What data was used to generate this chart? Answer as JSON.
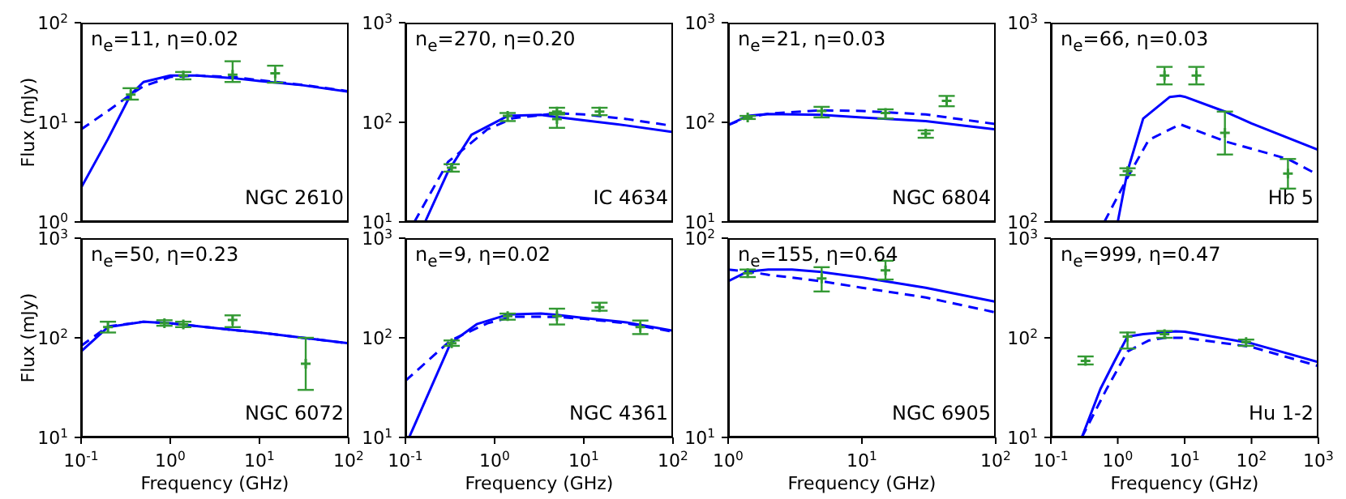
{
  "chart_data": [
    {
      "type": "line",
      "ylabel": "Flux (mJy)",
      "log": "xy",
      "grid": false,
      "tick_labels": "y",
      "marker": "none",
      "annotations": [
        "n$_{e}$=11, η=0.02",
        "NGC 2610"
      ],
      "xlim": [
        0.1,
        100
      ],
      "ylim": [
        1,
        100
      ],
      "xticks": [
        {
          "value": 0.1,
          "label": null
        },
        {
          "value": 1,
          "label": null
        },
        {
          "value": 10,
          "label": null
        },
        {
          "value": 100,
          "label": null
        }
      ],
      "yticks": [
        {
          "value": 1,
          "label": "10$^{0}$"
        },
        {
          "value": 10,
          "label": "10$^{1}$"
        },
        {
          "value": 100,
          "label": "10$^{2}$"
        }
      ],
      "series": [
        {
          "type": "line",
          "line_style": "solid",
          "color": "#0000ff",
          "x": [
            0.1,
            0.2,
            0.36,
            0.5,
            1,
            2,
            5,
            10,
            30,
            100
          ],
          "values": [
            2.2,
            6.8,
            19,
            25.4,
            29.5,
            29.5,
            27.8,
            26,
            23.6,
            20.3
          ]
        },
        {
          "type": "line",
          "line_style": "dashed",
          "color": "#0000ff",
          "x": [
            0.1,
            0.2,
            0.36,
            0.5,
            1,
            2,
            5,
            10,
            30,
            100
          ],
          "values": [
            8.5,
            13,
            19,
            23,
            28.5,
            29.5,
            28.5,
            26.5,
            23.8,
            20.5
          ]
        },
        {
          "type": "scatter",
          "marker": "cross",
          "color": "#339933",
          "x": [
            0.36,
            1.4,
            5,
            15
          ],
          "values": [
            19,
            29.5,
            30,
            31
          ],
          "errors": [
            [
              16.9,
              22
            ],
            [
              27,
              32
            ],
            [
              25.4,
              41
            ],
            [
              25,
              37
            ]
          ]
        }
      ]
    },
    {
      "type": "line",
      "log": "xy",
      "grid": false,
      "tick_labels": "y",
      "marker": "none",
      "annotations": [
        "n$_{e}$=270, η=0.20",
        "IC 4634"
      ],
      "xlim": [
        0.1,
        100
      ],
      "ylim": [
        10,
        1000
      ],
      "xticks": [
        {
          "value": 0.1,
          "label": null
        },
        {
          "value": 1,
          "label": null
        },
        {
          "value": 10,
          "label": null
        },
        {
          "value": 100,
          "label": null
        }
      ],
      "yticks": [
        {
          "value": 10,
          "label": "10$^{1}$"
        },
        {
          "value": 100,
          "label": "10$^{2}$"
        },
        {
          "value": 1000,
          "label": "10$^{3}$"
        }
      ],
      "series": [
        {
          "type": "line",
          "line_style": "solid",
          "color": "#0000ff",
          "x": [
            0.166,
            0.3,
            0.55,
            1.4,
            3.3,
            5,
            10,
            30,
            100
          ],
          "values": [
            10,
            32,
            75,
            116,
            119,
            113,
            105,
            93,
            80
          ]
        },
        {
          "type": "line",
          "line_style": "dashed",
          "color": "#0000ff",
          "x": [
            0.126,
            0.3,
            0.83,
            1.6,
            5,
            10,
            30,
            100
          ],
          "values": [
            10,
            40,
            85,
            110,
            123,
            120,
            108,
            92
          ]
        },
        {
          "type": "scatter",
          "marker": "cross",
          "color": "#339933",
          "x": [
            0.33,
            1.4,
            5,
            5,
            15
          ],
          "values": [
            35,
            116,
            128,
            108,
            128
          ],
          "errors": [
            [
              32,
              38
            ],
            [
              103,
              124
            ],
            [
              120,
              140
            ],
            [
              88,
              125
            ],
            [
              118,
              140
            ]
          ]
        }
      ]
    },
    {
      "type": "line",
      "log": "xy",
      "grid": false,
      "tick_labels": "y",
      "marker": "none",
      "annotations": [
        "n$_{e}$=21, η=0.03",
        "NGC 6804"
      ],
      "xlim": [
        1,
        100
      ],
      "ylim": [
        10,
        1000
      ],
      "xticks": [
        {
          "value": 1,
          "label": null
        },
        {
          "value": 10,
          "label": null
        },
        {
          "value": 100,
          "label": null
        }
      ],
      "yticks": [
        {
          "value": 10,
          "label": "10$^{1}$"
        },
        {
          "value": 100,
          "label": "10$^{2}$"
        },
        {
          "value": 1000,
          "label": "10$^{3}$"
        }
      ],
      "series": [
        {
          "type": "line",
          "line_style": "solid",
          "color": "#0000ff",
          "x": [
            1,
            1.4,
            2,
            5,
            10,
            30,
            100
          ],
          "values": [
            94,
            116,
            121,
            119,
            112,
            103,
            85
          ]
        },
        {
          "type": "line",
          "line_style": "dashed",
          "color": "#0000ff",
          "x": [
            1,
            1.4,
            2,
            5,
            10,
            30,
            100
          ],
          "values": [
            94,
            112,
            122,
            132,
            130,
            120,
            96
          ]
        },
        {
          "type": "scatter",
          "marker": "cross",
          "color": "#339933",
          "x": [
            1.4,
            5,
            15,
            30,
            43
          ],
          "values": [
            112,
            130,
            124,
            77,
            164
          ],
          "errors": [
            [
              108,
              116
            ],
            [
              112,
              143
            ],
            [
              109,
              135
            ],
            [
              70,
              83
            ],
            [
              145,
              184
            ]
          ]
        }
      ]
    },
    {
      "type": "line",
      "log": "xy",
      "grid": false,
      "tick_labels": "y",
      "marker": "none",
      "annotations": [
        "n$_{e}$=66, η=0.03",
        "Hb 5"
      ],
      "xlim": [
        0.1,
        1000
      ],
      "ylim": [
        100,
        1000
      ],
      "xticks": [
        {
          "value": 0.1,
          "label": null
        },
        {
          "value": 1,
          "label": null
        },
        {
          "value": 10,
          "label": null
        },
        {
          "value": 100,
          "label": null
        },
        {
          "value": 1000,
          "label": null
        }
      ],
      "yticks": [
        {
          "value": 100,
          "label": "10$^{2}$"
        },
        {
          "value": 1000,
          "label": "10$^{3}$"
        }
      ],
      "series": [
        {
          "type": "line",
          "line_style": "solid",
          "color": "#0000ff",
          "x": [
            1,
            1.4,
            2.4,
            6,
            8.5,
            10,
            40,
            100,
            1000
          ],
          "values": [
            100,
            180,
            330,
            424,
            430,
            425,
            358,
            312,
            230
          ]
        },
        {
          "type": "line",
          "line_style": "dashed",
          "color": "#0000ff",
          "x": [
            0.63,
            1.4,
            2.9,
            8.6,
            40,
            350,
            1000
          ],
          "values": [
            100,
            167,
            258,
            309,
            254,
            207,
            172
          ]
        },
        {
          "type": "scatter",
          "marker": "cross",
          "color": "#339933",
          "x": [
            1.4,
            5,
            15,
            40,
            350
          ],
          "values": [
            180,
            543,
            543,
            280,
            175
          ],
          "errors": [
            [
              172,
              186
            ],
            [
              490,
              600
            ],
            [
              490,
              600
            ],
            [
              218,
              358
            ],
            [
              147,
              207
            ]
          ]
        }
      ]
    },
    {
      "type": "line",
      "xlabel": "Frequency (GHz)",
      "ylabel": "Flux (mJy)",
      "log": "xy",
      "grid": false,
      "marker": "none",
      "annotations": [
        "n$_{e}$=50, η=0.23",
        "NGC 6072"
      ],
      "xlim": [
        0.1,
        100
      ],
      "ylim": [
        10,
        1000
      ],
      "xticks": [
        {
          "value": 0.1,
          "label": "10$^{-1}$"
        },
        {
          "value": 1,
          "label": "10$^{0}$"
        },
        {
          "value": 10,
          "label": "10$^{1}$"
        },
        {
          "value": 100,
          "label": "10$^{2}$"
        }
      ],
      "yticks": [
        {
          "value": 10,
          "label": "10$^{1}$"
        },
        {
          "value": 100,
          "label": "10$^{2}$"
        },
        {
          "value": 1000,
          "label": "10$^{3}$"
        }
      ],
      "series": [
        {
          "type": "line",
          "line_style": "solid",
          "color": "#0000ff",
          "x": [
            0.1,
            0.2,
            0.5,
            1,
            5,
            10,
            100
          ],
          "values": [
            73,
            128,
            145,
            140,
            120,
            113,
            88
          ]
        },
        {
          "type": "line",
          "line_style": "dashed",
          "color": "#0000ff",
          "x": [
            0.1,
            0.2,
            0.5,
            1,
            5,
            10,
            100
          ],
          "values": [
            83,
            130,
            145,
            140,
            120,
            113,
            88
          ]
        },
        {
          "type": "scatter",
          "marker": "cross",
          "color": "#339933",
          "x": [
            0.2,
            0.86,
            1.4,
            5,
            33
          ],
          "values": [
            128,
            140,
            136,
            151,
            55
          ],
          "errors": [
            [
              113,
              145
            ],
            [
              132,
              150
            ],
            [
              128,
              145
            ],
            [
              128,
              168
            ],
            [
              30,
              100
            ]
          ]
        }
      ]
    },
    {
      "type": "line",
      "xlabel": "Frequency (GHz)",
      "log": "xy",
      "grid": false,
      "marker": "none",
      "annotations": [
        "n$_{e}$=9, η=0.02",
        "NGC 4361"
      ],
      "xlim": [
        0.1,
        100
      ],
      "ylim": [
        10,
        1000
      ],
      "xticks": [
        {
          "value": 0.1,
          "label": "10$^{-1}$"
        },
        {
          "value": 1,
          "label": "10$^{0}$"
        },
        {
          "value": 10,
          "label": "10$^{1}$"
        },
        {
          "value": 100,
          "label": "10$^{2}$"
        }
      ],
      "yticks": [
        {
          "value": 10,
          "label": "10$^{1}$"
        },
        {
          "value": 100,
          "label": "10$^{2}$"
        },
        {
          "value": 1000,
          "label": "10$^{3}$"
        }
      ],
      "series": [
        {
          "type": "line",
          "line_style": "solid",
          "color": "#0000ff",
          "x": [
            0.11,
            0.32,
            0.63,
            1.4,
            3.3,
            5,
            10,
            30,
            100
          ],
          "values": [
            10,
            88,
            137,
            171,
            175,
            170,
            158,
            143,
            118
          ]
        },
        {
          "type": "line",
          "line_style": "dashed",
          "color": "#0000ff",
          "x": [
            0.1,
            0.32,
            0.83,
            1.6,
            5,
            10,
            30,
            100
          ],
          "values": [
            37,
            94,
            140,
            163,
            162,
            155,
            140,
            115
          ]
        },
        {
          "type": "scatter",
          "marker": "cross",
          "color": "#339933",
          "x": [
            0.33,
            1.4,
            5,
            15,
            43
          ],
          "values": [
            88,
            165,
            165,
            203,
            128
          ],
          "errors": [
            [
              83,
              94
            ],
            [
              152,
              175
            ],
            [
              136,
              196
            ],
            [
              187,
              225
            ],
            [
              109,
              149
            ]
          ]
        }
      ]
    },
    {
      "type": "line",
      "xlabel": "Frequency (GHz)",
      "log": "xy",
      "grid": false,
      "marker": "none",
      "annotations": [
        "n$_{e}$=155, η=0.64",
        "NGC 6905"
      ],
      "xlim": [
        1,
        100
      ],
      "ylim": [
        10,
        100
      ],
      "xticks": [
        {
          "value": 1,
          "label": "10$^{0}$"
        },
        {
          "value": 10,
          "label": "10$^{1}$"
        },
        {
          "value": 100,
          "label": "10$^{2}$"
        }
      ],
      "yticks": [
        {
          "value": 10,
          "label": "10$^{1}$"
        },
        {
          "value": 100,
          "label": "10$^{2}$"
        }
      ],
      "series": [
        {
          "type": "line",
          "line_style": "solid",
          "color": "#0000ff",
          "x": [
            1,
            1.4,
            2,
            3,
            5,
            10,
            30,
            100
          ],
          "values": [
            60.8,
            68,
            69.6,
            69.6,
            67.6,
            63.5,
            56.4,
            48
          ]
        },
        {
          "type": "line",
          "line_style": "dashed",
          "color": "#0000ff",
          "x": [
            1,
            1.4,
            2,
            5,
            10,
            30,
            100
          ],
          "values": [
            69.6,
            68,
            65.5,
            60.8,
            56.4,
            50.4,
            42.4
          ]
        },
        {
          "type": "scatter",
          "marker": "cross",
          "color": "#339933",
          "x": [
            1.4,
            5,
            15
          ],
          "values": [
            66.7,
            62.7,
            69
          ],
          "errors": [
            [
              63.8,
              69.6
            ],
            [
              54,
              71.5
            ],
            [
              62,
              77
            ]
          ]
        }
      ]
    },
    {
      "type": "line",
      "xlabel": "Frequency (GHz)",
      "log": "xy",
      "grid": false,
      "marker": "none",
      "annotations": [
        "n$_{e}$=999, η=0.47",
        "Hu 1-2"
      ],
      "xlim": [
        0.1,
        1000
      ],
      "ylim": [
        10,
        1000
      ],
      "xticks": [
        {
          "value": 0.1,
          "label": "10$^{-1}$"
        },
        {
          "value": 1,
          "label": "10$^{0}$"
        },
        {
          "value": 10,
          "label": "10$^{1}$"
        },
        {
          "value": 100,
          "label": "10$^{2}$"
        },
        {
          "value": 1000,
          "label": "10$^{3}$"
        }
      ],
      "yticks": [
        {
          "value": 10,
          "label": "10$^{1}$"
        },
        {
          "value": 100,
          "label": "10$^{2}$"
        },
        {
          "value": 1000,
          "label": "10$^{3}$"
        }
      ],
      "series": [
        {
          "type": "line",
          "line_style": "solid",
          "color": "#0000ff",
          "x": [
            0.29,
            0.55,
            0.88,
            1.4,
            2.4,
            7.3,
            10,
            100,
            1000
          ],
          "values": [
            10,
            30.6,
            57,
            103,
            109,
            116,
            115,
            88,
            57
          ]
        },
        {
          "type": "line",
          "line_style": "dashed",
          "color": "#0000ff",
          "x": [
            0.29,
            0.67,
            1.4,
            2.9,
            5,
            10,
            100,
            1000
          ],
          "values": [
            10,
            30,
            73,
            94,
            100,
            100,
            81,
            52
          ]
        },
        {
          "type": "scatter",
          "marker": "cross",
          "color": "#339933",
          "x": [
            0.33,
            1.4,
            5,
            83
          ],
          "values": [
            58.6,
            103,
            109,
            90.6
          ],
          "errors": [
            [
              54,
              65
            ],
            [
              78,
              113
            ],
            [
              100,
              117
            ],
            [
              83,
              96
            ]
          ]
        }
      ]
    }
  ]
}
